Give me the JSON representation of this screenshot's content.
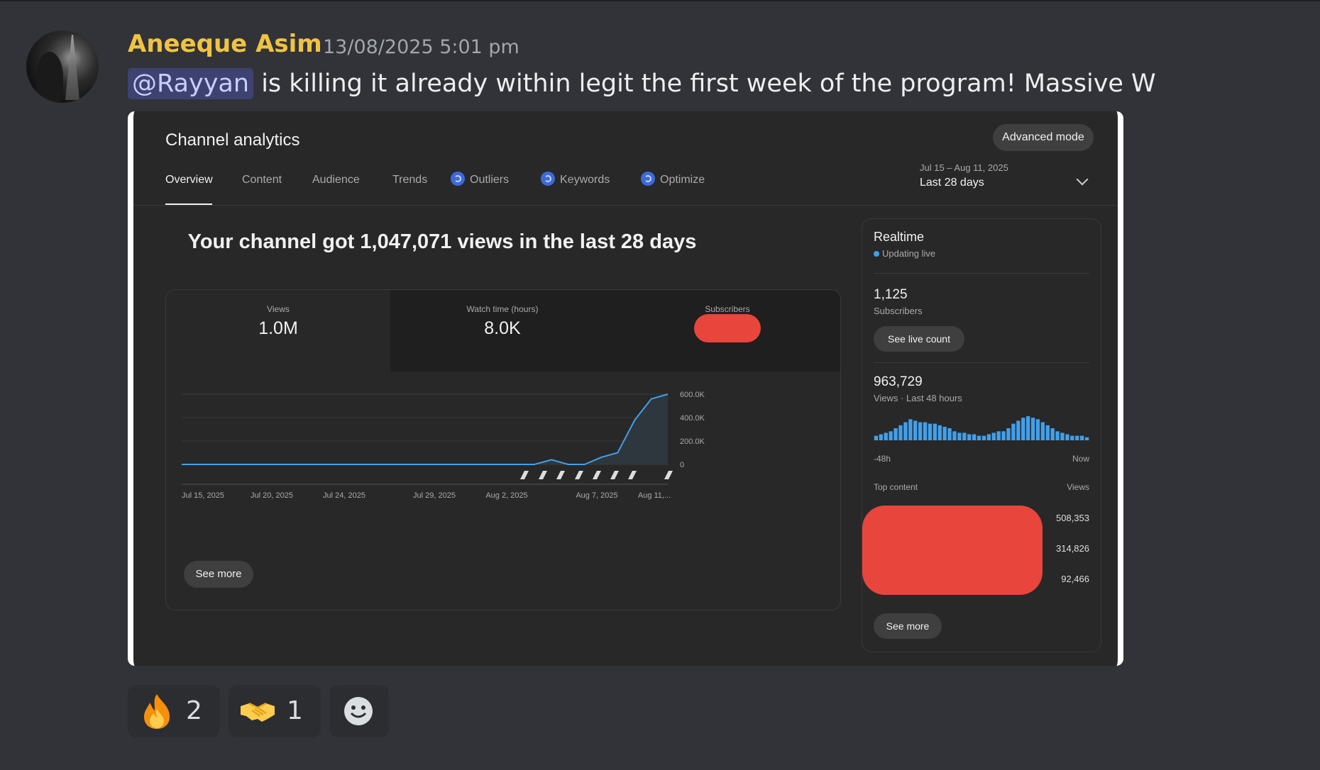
{
  "message": {
    "author": "Aneeque Asim",
    "timestamp": "13/08/2025 5:01 pm",
    "mention": "@Rayyan",
    "text": " is killing it already within legit the first week of the program! Massive W"
  },
  "analytics": {
    "title": "Channel analytics",
    "advanced_mode": "Advanced mode",
    "tabs": [
      {
        "label": "Overview",
        "active": true
      },
      {
        "label": "Content"
      },
      {
        "label": "Audience"
      },
      {
        "label": "Trends"
      },
      {
        "label": "Outliers",
        "icon": "spark-icon"
      },
      {
        "label": "Keywords",
        "icon": "spark-icon"
      },
      {
        "label": "Optimize",
        "icon": "spark-icon"
      }
    ],
    "date_range": "Jul 15 – Aug 11, 2025",
    "date_label": "Last 28 days",
    "headline": "Your channel got 1,047,071 views in the last 28 days",
    "metrics": [
      {
        "label": "Views",
        "value": "1.0M"
      },
      {
        "label": "Watch time (hours)",
        "value": "8.0K"
      },
      {
        "label": "Subscribers",
        "value": ""
      }
    ],
    "see_more": "See more"
  },
  "chart_data": {
    "type": "area",
    "x": [
      "Jul 15",
      "Aug 1",
      "Aug 3",
      "Aug 4",
      "Aug 5",
      "Aug 6",
      "Aug 7",
      "Aug 8",
      "Aug 9",
      "Aug 10",
      "Aug 11"
    ],
    "values": [
      0,
      0,
      0,
      40000,
      0,
      0,
      60000,
      100000,
      380000,
      560000,
      600000
    ],
    "x_tick_labels": [
      "Jul 15, 2025",
      "Jul 20, 2025",
      "Jul 24, 2025",
      "Jul 29, 2025",
      "Aug 2, 2025",
      "Aug 7, 2025",
      "Aug 11,..."
    ],
    "y_tick_labels": [
      "600.0K",
      "400.0K",
      "200.0K",
      "0"
    ],
    "ylim": [
      0,
      600000
    ],
    "color": "#41a0ec",
    "grid": true
  },
  "realtime": {
    "title": "Realtime",
    "status": "Updating live",
    "subscribers": "1,125",
    "subscribers_label": "Subscribers",
    "see_live_count": "See live count",
    "views": "963,729",
    "views_label": "Views · Last 48 hours",
    "bars": [
      3,
      4,
      5,
      6,
      8,
      10,
      12,
      14,
      13,
      12,
      12,
      11,
      11,
      10,
      9,
      8,
      6,
      5,
      5,
      4,
      4,
      3,
      3,
      4,
      5,
      6,
      6,
      8,
      11,
      13,
      15,
      16,
      15,
      14,
      12,
      10,
      8,
      6,
      5,
      4,
      3,
      3,
      3,
      2
    ],
    "axis_left": "-48h",
    "axis_right": "Now",
    "top_content": "Top content",
    "views_col": "Views",
    "top_values": [
      "508,353",
      "314,826",
      "92,466"
    ],
    "see_more": "See more"
  },
  "reactions": [
    {
      "emoji": "fire-emoji",
      "count": "2"
    },
    {
      "emoji": "handshake-emoji",
      "count": "1"
    }
  ],
  "colors": {
    "username": "#f0c341",
    "background": "#313338",
    "redaction": "#e8453c"
  }
}
